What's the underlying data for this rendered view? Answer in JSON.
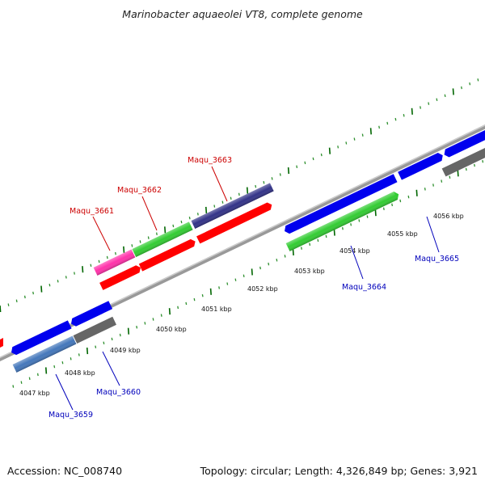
{
  "title": "Marinobacter aquaeolei VT8, complete genome",
  "footer": {
    "accession": "Accession: NC_008740",
    "summary": "Topology: circular; Length: 4,326,849 bp; Genes: 3,921"
  },
  "ticks": [
    "4047 kbp",
    "4048 kbp",
    "4049 kbp",
    "4050 kbp",
    "4051 kbp",
    "4052 kbp",
    "4053 kbp",
    "4054 kbp",
    "4055 kbp",
    "4056 kbp"
  ],
  "genes_top": [
    "Maqu_3661",
    "Maqu_3662",
    "Maqu_3663"
  ],
  "genes_bottom": [
    "Maqu_3659",
    "Maqu_3660",
    "Maqu_3664",
    "Maqu_3665"
  ],
  "colors": {
    "top_label": "#cc0000",
    "bottom_label": "#0000bb",
    "backbone": "#888888",
    "tick": "#006600",
    "red": "#ff0000",
    "blue": "#0000ee",
    "green": "#33cc33",
    "pink": "#ff33aa",
    "navy": "#333388",
    "grey": "#666666",
    "steel": "#4477bb"
  }
}
